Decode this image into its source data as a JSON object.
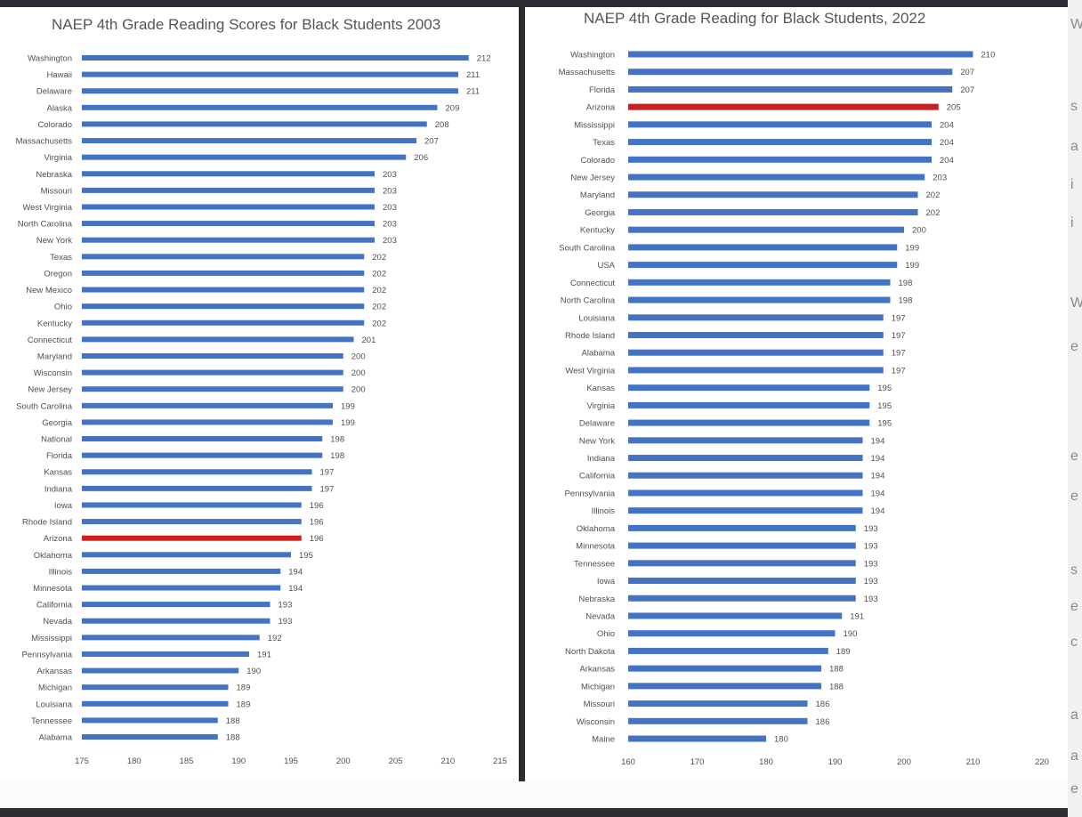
{
  "colors": {
    "bar": "#4472c4",
    "highlight": "#cc1f1f"
  },
  "chart_data": [
    {
      "type": "bar",
      "orientation": "horizontal",
      "title": "NAEP 4th Grade Reading Scores for Black Students 2003",
      "xlim": [
        175,
        215
      ],
      "xticks": [
        175,
        180,
        185,
        190,
        195,
        200,
        205,
        210,
        215
      ],
      "highlight": "Arizona",
      "data_labels": true,
      "categories": [
        "Washington",
        "Hawaii",
        "Delaware",
        "Alaska",
        "Colorado",
        "Massachusetts",
        "Virginia",
        "Nebraska",
        "Missouri",
        "West Virginia",
        "North Carolina",
        "New York",
        "Texas",
        "Oregon",
        "New Mexico",
        "Ohio",
        "Kentucky",
        "Connecticut",
        "Maryland",
        "Wisconsin",
        "New Jersey",
        "South Carolina",
        "Georgia",
        "National",
        "Florida",
        "Kansas",
        "Indiana",
        "Iowa",
        "Rhode Island",
        "Arizona",
        "Oklahoma",
        "Illinois",
        "Minnesota",
        "California",
        "Nevada",
        "Mississippi",
        "Pennsylvania",
        "Arkansas",
        "Michigan",
        "Louisiana",
        "Tennessee",
        "Alabama"
      ],
      "values": [
        212,
        211,
        211,
        209,
        208,
        207,
        206,
        203,
        203,
        203,
        203,
        203,
        202,
        202,
        202,
        202,
        202,
        201,
        200,
        200,
        200,
        199,
        199,
        198,
        198,
        197,
        197,
        196,
        196,
        196,
        195,
        194,
        194,
        193,
        193,
        192,
        191,
        190,
        189,
        189,
        188,
        188
      ]
    },
    {
      "type": "bar",
      "orientation": "horizontal",
      "title": "NAEP 4th Grade Reading for Black Students, 2022",
      "xlim": [
        160,
        220
      ],
      "xticks": [
        160,
        170,
        180,
        190,
        200,
        210,
        220
      ],
      "highlight": "Arizona",
      "data_labels": true,
      "categories": [
        "Washington",
        "Massachusetts",
        "Florida",
        "Arizona",
        "Mississippi",
        "Texas",
        "Colorado",
        "New Jersey",
        "Maryland",
        "Georgia",
        "Kentucky",
        "South Carolina",
        "USA",
        "Connecticut",
        "North Carolina",
        "Louisiana",
        "Rhode Island",
        "Alabama",
        "West Virginia",
        "Kansas",
        "Virginia",
        "Delaware",
        "New York",
        "Indiana",
        "California",
        "Pennsylvania",
        "Illinois",
        "Oklahoma",
        "Minnesota",
        "Tennessee",
        "Iowa",
        "Nebraska",
        "Nevada",
        "Ohio",
        "North Dakota",
        "Arkansas",
        "Michigan",
        "Missouri",
        "Wisconsin",
        "Maine"
      ],
      "values": [
        210,
        207,
        207,
        205,
        204,
        204,
        204,
        203,
        202,
        202,
        200,
        199,
        199,
        198,
        198,
        197,
        197,
        197,
        197,
        195,
        195,
        195,
        194,
        194,
        194,
        194,
        194,
        193,
        193,
        193,
        193,
        193,
        191,
        190,
        189,
        188,
        188,
        186,
        186,
        180
      ]
    }
  ],
  "side_text": [
    "W",
    "s",
    "a",
    "i",
    "i",
    "W",
    "e",
    "e",
    "e",
    "s",
    "e",
    "c",
    "a",
    "a",
    "e"
  ]
}
